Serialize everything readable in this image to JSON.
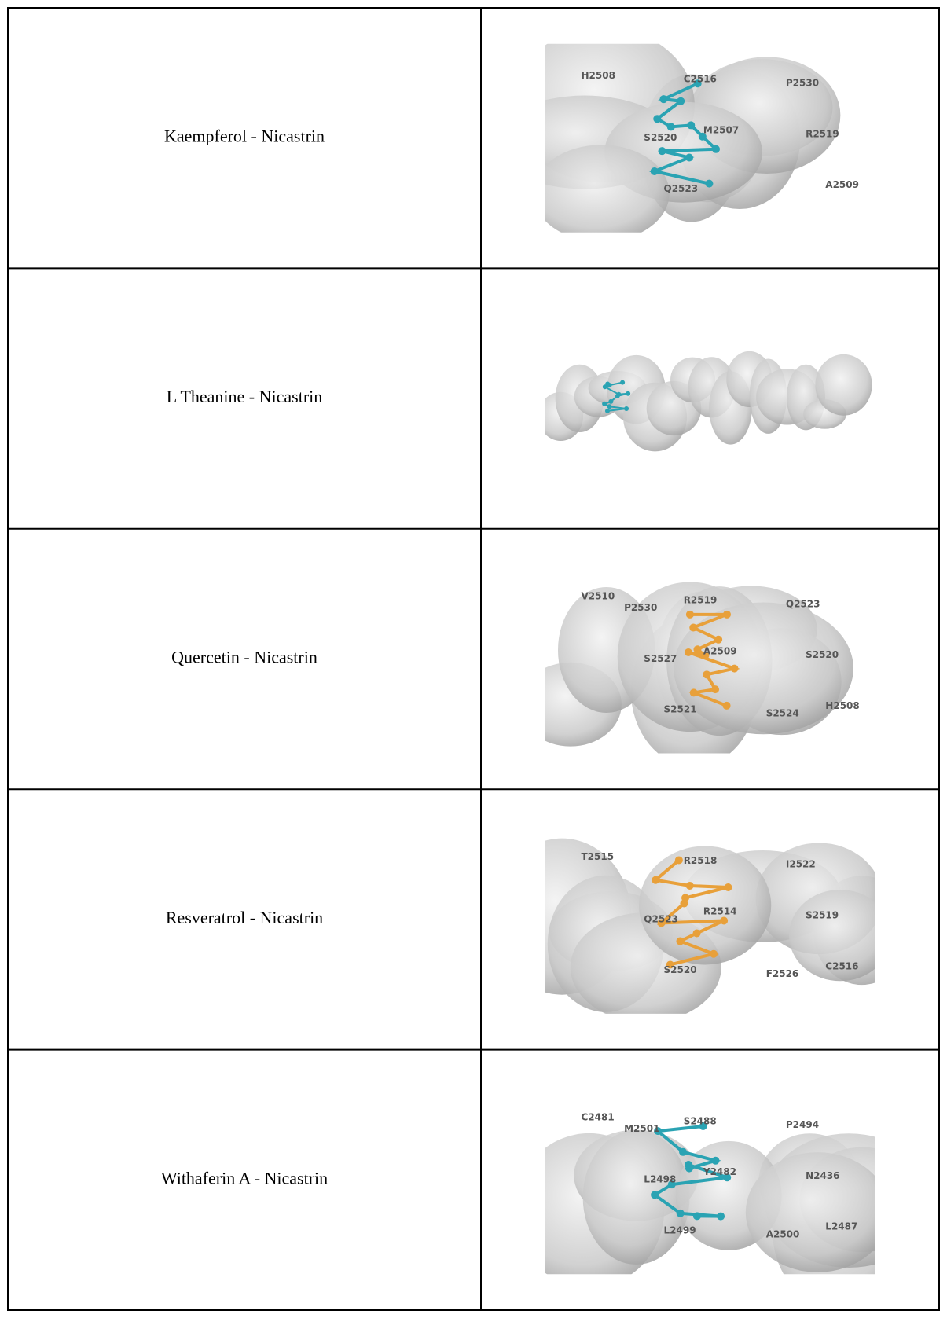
{
  "table": {
    "rows": [
      {
        "label": "Kaempferol - Nicastrin",
        "ligand_color": "#2aa3b3",
        "residues": [
          "H2508",
          "M2507",
          "A2509",
          "C2516",
          "R2519",
          "Q2523",
          "P2530",
          "S2520"
        ]
      },
      {
        "label": "L Theanine - Nicastrin",
        "ligand_color": "#2aa3b3",
        "residues": []
      },
      {
        "label": "Quercetin - Nicastrin",
        "ligand_color": "#e8a03a",
        "residues": [
          "V2510",
          "A2509",
          "H2508",
          "R2519",
          "S2520",
          "S2521",
          "Q2523",
          "S2527",
          "S2524",
          "P2530"
        ]
      },
      {
        "label": "Resveratrol - Nicastrin",
        "ligand_color": "#e8a03a",
        "residues": [
          "T2515",
          "R2514",
          "C2516",
          "R2518",
          "S2519",
          "S2520",
          "I2522",
          "Q2523",
          "F2526"
        ]
      },
      {
        "label": "Withaferin A - Nicastrin",
        "ligand_color": "#2aa3b3",
        "residues": [
          "C2481",
          "Y2482",
          "L2487",
          "S2488",
          "N2436",
          "L2499",
          "P2494",
          "L2498",
          "A2500",
          "M2501"
        ]
      }
    ]
  }
}
